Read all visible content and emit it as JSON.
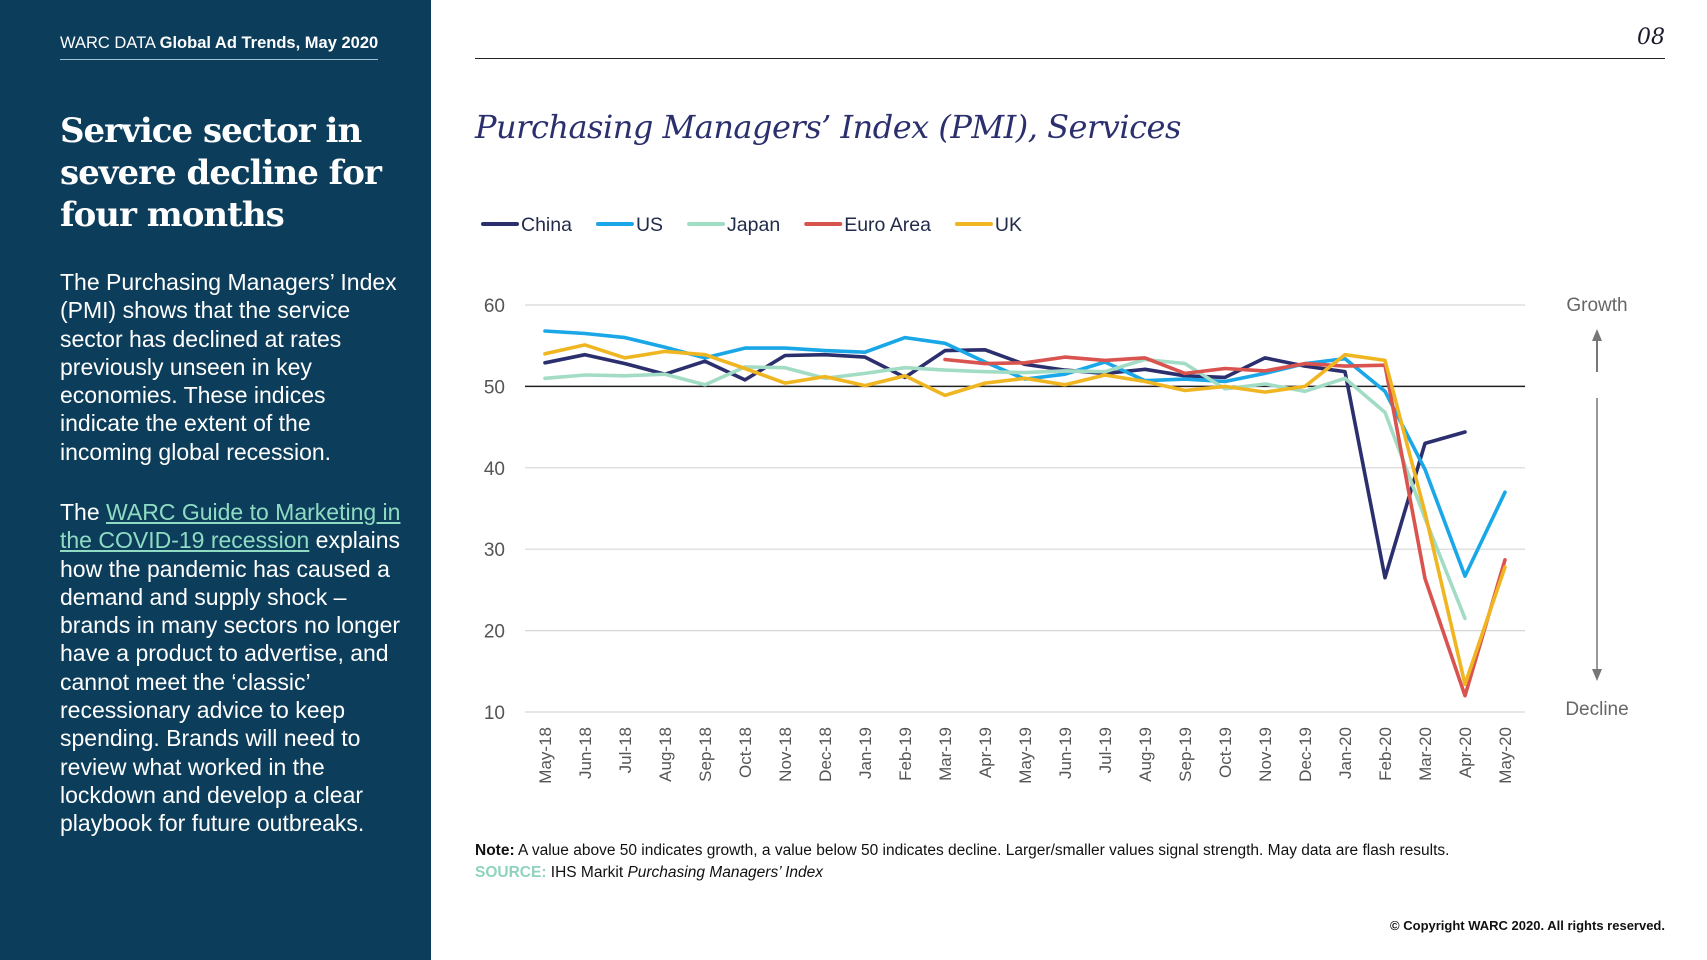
{
  "header": {
    "brand_prefix": "WARC DATA",
    "brand_title": "Global Ad Trends, May 2020",
    "page_number": "08"
  },
  "sidebar": {
    "headline": "Service sector in severe decline for four months",
    "paragraph1": "The Purchasing Managers’ Index (PMI) shows that the service sector has declined at rates previously unseen in key economies. These indices indicate the extent of the incoming global recession.",
    "paragraph2_prefix": "The ",
    "paragraph2_link": "WARC Guide to Marketing in the COVID-19 recession",
    "paragraph2_suffix": " explains how the pandemic has caused a demand and supply shock – brands in many sectors no longer have a product to advertise, and cannot meet the ‘classic’ recessionary advice to keep spending. Brands will need to review what worked in the lockdown and develop a clear playbook for future outbreaks."
  },
  "chart_data": {
    "type": "line",
    "title": "Purchasing Managers’ Index (PMI), Services",
    "xlabel": "",
    "ylabel": "",
    "ylim": [
      10,
      60
    ],
    "yticks": [
      10,
      20,
      30,
      40,
      50,
      60
    ],
    "threshold": 50,
    "grid": true,
    "legend_position": "top-left",
    "side_labels": {
      "top": "Growth",
      "bottom": "Decline"
    },
    "categories": [
      "May-18",
      "Jun-18",
      "Jul-18",
      "Aug-18",
      "Sep-18",
      "Oct-18",
      "Nov-18",
      "Dec-18",
      "Jan-19",
      "Feb-19",
      "Mar-19",
      "Apr-19",
      "May-19",
      "Jun-19",
      "Jul-19",
      "Aug-19",
      "Sep-19",
      "Oct-19",
      "Nov-19",
      "Dec-19",
      "Jan-20",
      "Feb-20",
      "Mar-20",
      "Apr-20",
      "May-20"
    ],
    "series": [
      {
        "name": "China",
        "color": "#2b2f6e",
        "values": [
          52.9,
          53.9,
          52.8,
          51.5,
          53.1,
          50.8,
          53.8,
          53.9,
          53.6,
          51.1,
          54.4,
          54.5,
          52.7,
          52.0,
          51.6,
          52.1,
          51.3,
          51.1,
          53.5,
          52.5,
          51.8,
          26.5,
          43.0,
          44.4,
          null
        ]
      },
      {
        "name": "US",
        "color": "#19a7e8",
        "values": [
          56.8,
          56.5,
          56.0,
          54.8,
          53.5,
          54.7,
          54.7,
          54.4,
          54.2,
          56.0,
          55.3,
          53.0,
          50.9,
          51.5,
          53.0,
          50.7,
          50.9,
          50.6,
          51.6,
          52.8,
          53.4,
          49.4,
          39.8,
          26.7,
          37.0
        ]
      },
      {
        "name": "Japan",
        "color": "#a3dcc4",
        "values": [
          51.0,
          51.4,
          51.3,
          51.5,
          50.2,
          52.4,
          52.3,
          51.0,
          51.6,
          52.3,
          52.0,
          51.8,
          51.7,
          51.9,
          51.8,
          53.3,
          52.8,
          49.7,
          50.3,
          49.4,
          51.0,
          46.8,
          33.8,
          21.5,
          null
        ]
      },
      {
        "name": "Euro Area",
        "color": "#d9534f",
        "values": [
          null,
          null,
          null,
          null,
          null,
          null,
          null,
          null,
          null,
          null,
          53.3,
          52.8,
          52.9,
          53.6,
          53.2,
          53.5,
          51.6,
          52.2,
          51.9,
          52.8,
          52.5,
          52.6,
          26.4,
          12.0,
          28.7
        ]
      },
      {
        "name": "UK",
        "color": "#f0b622",
        "values": [
          54.0,
          55.1,
          53.5,
          54.3,
          53.9,
          52.2,
          50.4,
          51.2,
          50.1,
          51.3,
          48.9,
          50.4,
          51.0,
          50.2,
          51.4,
          50.6,
          49.5,
          50.0,
          49.3,
          50.0,
          53.9,
          53.2,
          34.5,
          13.4,
          27.8
        ]
      }
    ]
  },
  "footer": {
    "note_label": "Note:",
    "note_text": " A value above 50 indicates growth, a value below 50 indicates decline. Larger/smaller values signal strength. May data are flash results.",
    "source_label": "SOURCE:",
    "source_text": " IHS Markit ",
    "source_italic": "Purchasing Managers’ Index",
    "copyright": "© Copyright WARC 2020. All rights reserved."
  }
}
